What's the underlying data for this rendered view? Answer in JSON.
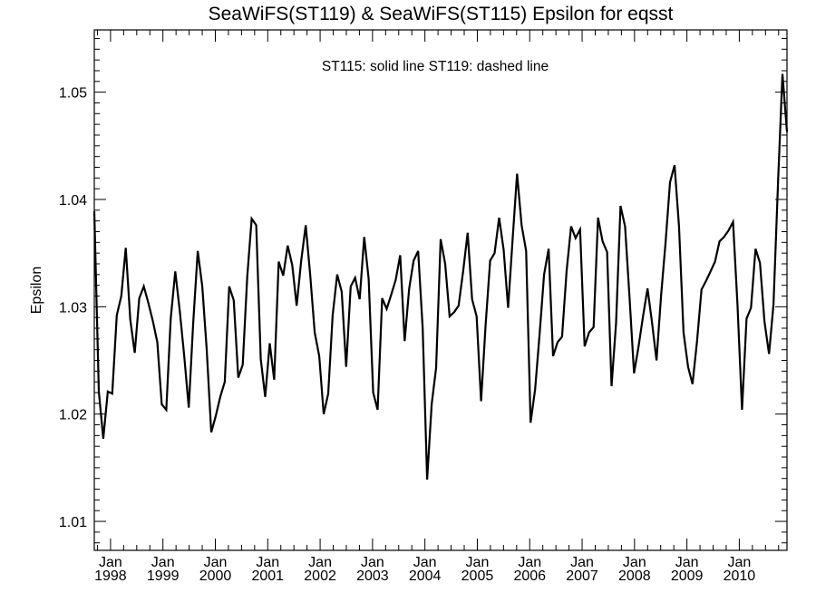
{
  "chart_data": {
    "type": "line",
    "title": "SeaWiFS(ST119) & SeaWiFS(ST115)  Epsilon for eqsst",
    "annotation": "ST115: solid line   ST119: dashed line",
    "xlabel": "",
    "ylabel": "Epsilon",
    "xlim": [
      1997.69,
      2010.91
    ],
    "ylim": [
      1.0073,
      1.0558
    ],
    "grid": false,
    "x_ticks": [
      {
        "value": 1998,
        "month": "Jan",
        "year": "1998"
      },
      {
        "value": 1999,
        "month": "Jan",
        "year": "1999"
      },
      {
        "value": 2000,
        "month": "Jan",
        "year": "2000"
      },
      {
        "value": 2001,
        "month": "Jan",
        "year": "2001"
      },
      {
        "value": 2002,
        "month": "Jan",
        "year": "2002"
      },
      {
        "value": 2003,
        "month": "Jan",
        "year": "2003"
      },
      {
        "value": 2004,
        "month": "Jan",
        "year": "2004"
      },
      {
        "value": 2005,
        "month": "Jan",
        "year": "2005"
      },
      {
        "value": 2006,
        "month": "Jan",
        "year": "2006"
      },
      {
        "value": 2007,
        "month": "Jan",
        "year": "2007"
      },
      {
        "value": 2008,
        "month": "Jan",
        "year": "2008"
      },
      {
        "value": 2009,
        "month": "Jan",
        "year": "2009"
      },
      {
        "value": 2010,
        "month": "Jan",
        "year": "2010"
      }
    ],
    "y_ticks": [
      {
        "value": 1.01,
        "label": "1.01"
      },
      {
        "value": 1.02,
        "label": "1.02"
      },
      {
        "value": 1.03,
        "label": "1.03"
      },
      {
        "value": 1.04,
        "label": "1.04"
      },
      {
        "value": 1.05,
        "label": "1.05"
      }
    ],
    "series": [
      {
        "name": "ST115",
        "style": "solid",
        "color": "#000000",
        "x_start": 1997.69,
        "x_end": 2010.91,
        "values": [
          1.0389,
          1.0221,
          1.0177,
          1.0221,
          1.0219,
          1.0292,
          1.031,
          1.0355,
          1.0288,
          1.0257,
          1.0308,
          1.0319,
          1.0304,
          1.0287,
          1.0267,
          1.0209,
          1.0204,
          1.0289,
          1.0333,
          1.0296,
          1.0254,
          1.0206,
          1.0285,
          1.0352,
          1.0319,
          1.026,
          1.0183,
          1.0198,
          1.0216,
          1.023,
          1.0319,
          1.0306,
          1.0234,
          1.0246,
          1.0328,
          1.0382,
          1.0376,
          1.0251,
          1.0216,
          1.0266,
          1.0232,
          1.0342,
          1.0329,
          1.0357,
          1.0339,
          1.0301,
          1.0343,
          1.0376,
          1.033,
          1.0276,
          1.0254,
          1.02,
          1.0219,
          1.0292,
          1.033,
          1.0314,
          1.0244,
          1.0319,
          1.0327,
          1.0307,
          1.0365,
          1.0326,
          1.022,
          1.0204,
          1.0308,
          1.0298,
          1.0311,
          1.0325,
          1.0348,
          1.0268,
          1.0317,
          1.0343,
          1.0352,
          1.028,
          1.0139,
          1.0209,
          1.0243,
          1.0363,
          1.034,
          1.0291,
          1.0295,
          1.0301,
          1.0333,
          1.0369,
          1.0307,
          1.0291,
          1.0212,
          1.0283,
          1.0343,
          1.035,
          1.0383,
          1.0353,
          1.0299,
          1.0363,
          1.0424,
          1.0376,
          1.0352,
          1.0192,
          1.0223,
          1.0274,
          1.033,
          1.0354,
          1.0254,
          1.0267,
          1.0272,
          1.0333,
          1.0375,
          1.0364,
          1.0372,
          1.0263,
          1.0276,
          1.0281,
          1.0383,
          1.0361,
          1.0351,
          1.0226,
          1.0285,
          1.0394,
          1.0375,
          1.0308,
          1.0238,
          1.0263,
          1.0291,
          1.0317,
          1.0285,
          1.025,
          1.031,
          1.036,
          1.0416,
          1.0432,
          1.0375,
          1.0276,
          1.0244,
          1.0228,
          1.0268,
          1.0316,
          1.0324,
          1.0333,
          1.0342,
          1.0361,
          1.0365,
          1.0371,
          1.0379,
          1.0302,
          1.0204,
          1.0289,
          1.0299,
          1.0354,
          1.0341,
          1.0286,
          1.0256,
          1.0302,
          1.0415,
          1.0517,
          1.0463
        ]
      }
    ]
  }
}
